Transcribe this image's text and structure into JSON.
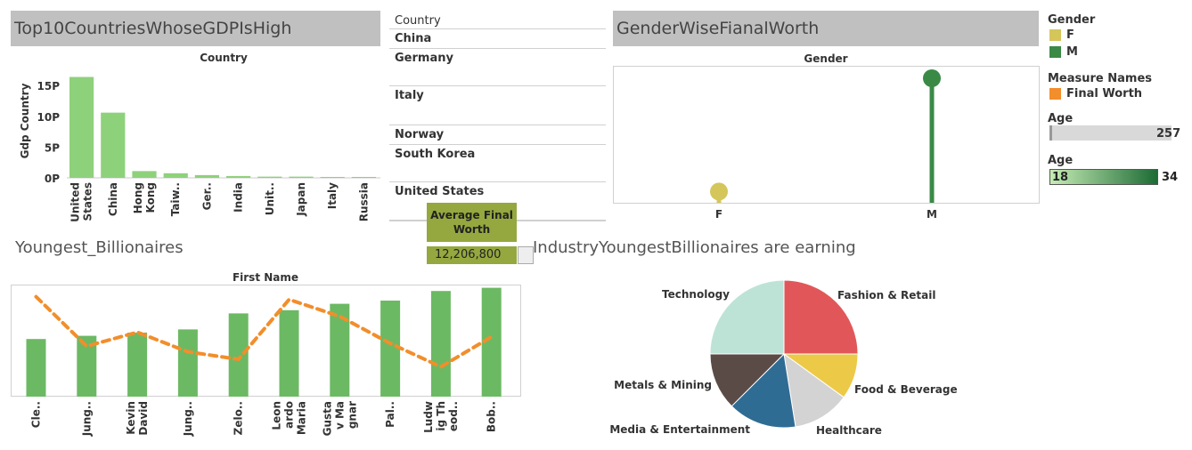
{
  "gdp_panel": {
    "title": "Top10CountriesWhoseGDPIsHigh",
    "header": "Country",
    "ylabel": "Gdp Country",
    "color": "#8ed17b",
    "chart_data": {
      "type": "bar",
      "title": "",
      "xlabel": "Country",
      "ylabel": "Gdp Country",
      "categories": [
        "United States",
        "China",
        "Hong Kong",
        "Taiw..",
        "Ger..",
        "India",
        "Unit..",
        "Japan",
        "Italy",
        "Russia"
      ],
      "category_lines": [
        [
          "United",
          "States"
        ],
        [
          "China"
        ],
        [
          "Hong",
          "Kong"
        ],
        [
          "Taiw.."
        ],
        [
          "Ger.."
        ],
        [
          "India"
        ],
        [
          "Unit.."
        ],
        [
          "Japan"
        ],
        [
          "Italy"
        ],
        [
          "Russia"
        ]
      ],
      "values": [
        16.4,
        10.6,
        1.1,
        0.75,
        0.45,
        0.3,
        0.2,
        0.2,
        0.15,
        0.15
      ],
      "ylim": [
        0,
        18.5
      ],
      "yticks": [
        0,
        5,
        10,
        15
      ],
      "ytick_labels": [
        "0P",
        "5P",
        "10P",
        "15P"
      ]
    }
  },
  "country_table": {
    "header": "Country",
    "rows": [
      "China",
      "Germany",
      "Italy",
      "Norway",
      "South Korea",
      "United States"
    ]
  },
  "avg_card": {
    "header": "Average Final Worth",
    "header_lines": [
      "Average Final",
      "Worth"
    ],
    "value": "12,206,800",
    "color": "#94a83f"
  },
  "gender_panel": {
    "title": "GenderWiseFianalWorth",
    "header": "Gender",
    "chart_data": {
      "type": "lollipop",
      "title": "",
      "xlabel": "Gender",
      "categories": [
        "F",
        "M"
      ],
      "values": [
        0.09,
        1.0
      ],
      "colors": [
        "#d4c65b",
        "#3a8a45"
      ],
      "ylim": [
        0,
        1.1
      ]
    }
  },
  "legends": {
    "gender_title": "Gender",
    "gender_items": [
      {
        "label": "F",
        "color": "#d4c65b"
      },
      {
        "label": "M",
        "color": "#3a8a45"
      }
    ],
    "measure_title": "Measure Names",
    "measure_items": [
      {
        "label": "Final Worth",
        "color": "#f28e2b"
      }
    ],
    "age_filter_title": "Age",
    "age_filter_max": "257",
    "age_color_title": "Age",
    "age_color_min": "18",
    "age_color_max": "34",
    "age_color_from": "#c6ecb5",
    "age_color_to": "#1d6b35"
  },
  "youngest_panel": {
    "title": "Youngest_Billionaires",
    "header": "First Name",
    "bar_color": "#6cb964",
    "line_color": "#f28e2b",
    "chart_data": {
      "type": "bar+line",
      "title": "",
      "xlabel": "First Name",
      "categories": [
        "Cle..",
        "Jung..",
        "Kevin David",
        "Jung..",
        "Zelo..",
        "Leonardo Maria",
        "Gustav Magnar",
        "Pal..",
        "Ludwig Theod..",
        "Bob.."
      ],
      "category_lines": [
        [
          "Cle.."
        ],
        [
          "Jung.."
        ],
        [
          "Kevin",
          "David"
        ],
        [
          "Jung.."
        ],
        [
          "Zelo.."
        ],
        [
          "Leon",
          "ardo",
          "Maria"
        ],
        [
          "Gusta",
          "v Ma",
          "gnar"
        ],
        [
          "Pal.."
        ],
        [
          "Ludw",
          "ig Th",
          "eod.."
        ],
        [
          "Bob.."
        ]
      ],
      "series": [
        {
          "type": "bar",
          "values": [
            18,
            19,
            20,
            21,
            26,
            27,
            29,
            30,
            33,
            34
          ]
        },
        {
          "type": "line",
          "values": [
            107,
            54,
            69,
            48,
            40,
            104,
            86,
            57,
            32,
            64
          ]
        }
      ],
      "ylim_bar": [
        0,
        35
      ],
      "ylim_line": [
        0,
        120
      ]
    }
  },
  "industry_panel": {
    "title": "IndustryYoungestBillionaires are earning",
    "chart_data": {
      "type": "pie",
      "title": "",
      "labels": [
        "Fashion & Retail",
        "Food & Beverage",
        "Healthcare",
        "Media & Entertainment",
        "Metals & Mining",
        "Technology"
      ],
      "values": [
        25,
        10,
        12.5,
        15,
        12.5,
        25
      ],
      "colors": [
        "#e15759",
        "#edc948",
        "#d3d3d3",
        "#2f6c94",
        "#5b4b47",
        "#bde3d7"
      ]
    }
  }
}
